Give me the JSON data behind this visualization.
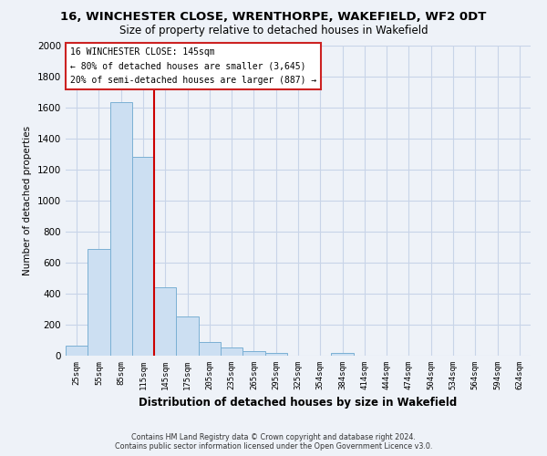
{
  "title": "16, WINCHESTER CLOSE, WRENTHORPE, WAKEFIELD, WF2 0DT",
  "subtitle": "Size of property relative to detached houses in Wakefield",
  "xlabel": "Distribution of detached houses by size in Wakefield",
  "ylabel": "Number of detached properties",
  "bar_labels": [
    "25sqm",
    "55sqm",
    "85sqm",
    "115sqm",
    "145sqm",
    "175sqm",
    "205sqm",
    "235sqm",
    "265sqm",
    "295sqm",
    "325sqm",
    "354sqm",
    "384sqm",
    "414sqm",
    "444sqm",
    "474sqm",
    "504sqm",
    "534sqm",
    "564sqm",
    "594sqm",
    "624sqm"
  ],
  "bar_values": [
    65,
    690,
    1635,
    1285,
    440,
    255,
    90,
    55,
    30,
    20,
    0,
    0,
    15,
    0,
    0,
    0,
    0,
    0,
    0,
    0,
    0
  ],
  "bar_color": "#ccdff2",
  "bar_edge_color": "#7ab0d4",
  "vline_color": "#cc0000",
  "ylim": [
    0,
    2000
  ],
  "yticks": [
    0,
    200,
    400,
    600,
    800,
    1000,
    1200,
    1400,
    1600,
    1800,
    2000
  ],
  "annotation_title": "16 WINCHESTER CLOSE: 145sqm",
  "annotation_line1": "← 80% of detached houses are smaller (3,645)",
  "annotation_line2": "20% of semi-detached houses are larger (887) →",
  "footnote1": "Contains HM Land Registry data © Crown copyright and database right 2024.",
  "footnote2": "Contains public sector information licensed under the Open Government Licence v3.0.",
  "grid_color": "#c8d4e8",
  "bg_color": "#eef2f8"
}
